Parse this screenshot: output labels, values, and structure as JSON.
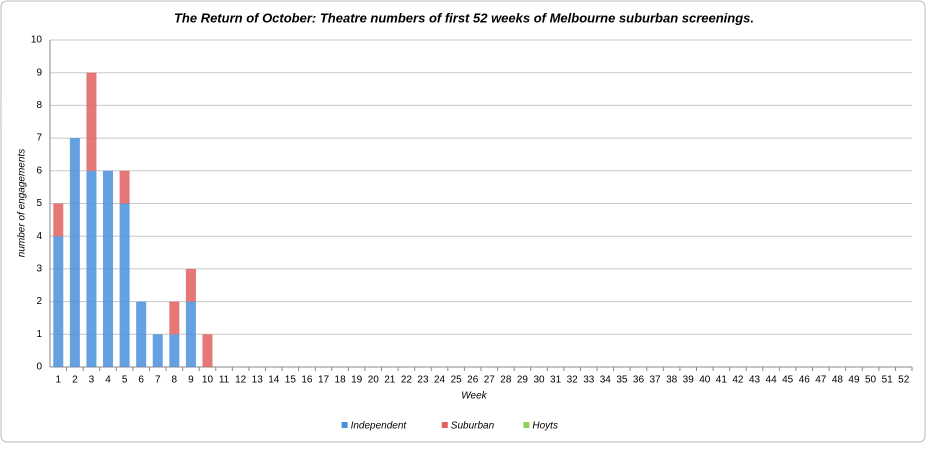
{
  "chart_data": {
    "type": "stacked_bar",
    "title": "The Return of October: Theatre numbers of first 52 weeks of Melbourne suburban screenings.",
    "x_label": "Week",
    "y_label": "number of engagements",
    "categories": [
      "1",
      "2",
      "3",
      "4",
      "5",
      "6",
      "7",
      "8",
      "9",
      "10",
      "11",
      "12",
      "13",
      "14",
      "15",
      "16",
      "17",
      "18",
      "19",
      "20",
      "21",
      "22",
      "23",
      "24",
      "25",
      "26",
      "27",
      "28",
      "29",
      "30",
      "31",
      "32",
      "33",
      "34",
      "35",
      "36",
      "37",
      "38",
      "39",
      "40",
      "41",
      "42",
      "43",
      "44",
      "45",
      "46",
      "47",
      "48",
      "49",
      "50",
      "51",
      "52"
    ],
    "series": [
      {
        "name": "Independent",
        "color": "#4a8fdc",
        "values": [
          4,
          7,
          6,
          6,
          5,
          2,
          1,
          1,
          2,
          0,
          0,
          0,
          0,
          0,
          0,
          0,
          0,
          0,
          0,
          0,
          0,
          0,
          0,
          0,
          0,
          0,
          0,
          0,
          0,
          0,
          0,
          0,
          0,
          0,
          0,
          0,
          0,
          0,
          0,
          0,
          0,
          0,
          0,
          0,
          0,
          0,
          0,
          0,
          0,
          0,
          0,
          0
        ]
      },
      {
        "name": "Suburban",
        "color": "#e25f5f",
        "values": [
          1,
          0,
          3,
          0,
          1,
          0,
          0,
          1,
          1,
          1,
          0,
          0,
          0,
          0,
          0,
          0,
          0,
          0,
          0,
          0,
          0,
          0,
          0,
          0,
          0,
          0,
          0,
          0,
          0,
          0,
          0,
          0,
          0,
          0,
          0,
          0,
          0,
          0,
          0,
          0,
          0,
          0,
          0,
          0,
          0,
          0,
          0,
          0,
          0,
          0,
          0,
          0
        ]
      },
      {
        "name": "Hoyts",
        "color": "#8fd05a",
        "values": [
          0,
          0,
          0,
          0,
          0,
          0,
          0,
          0,
          0,
          0,
          0,
          0,
          0,
          0,
          0,
          0,
          0,
          0,
          0,
          0,
          0,
          0,
          0,
          0,
          0,
          0,
          0,
          0,
          0,
          0,
          0,
          0,
          0,
          0,
          0,
          0,
          0,
          0,
          0,
          0,
          0,
          0,
          0,
          0,
          0,
          0,
          0,
          0,
          0,
          0,
          0,
          0
        ]
      }
    ],
    "ylim": [
      0,
      10
    ],
    "yticks": [
      0,
      1,
      2,
      3,
      4,
      5,
      6,
      7,
      8,
      9,
      10
    ],
    "grid": true,
    "legend": "bottom"
  }
}
